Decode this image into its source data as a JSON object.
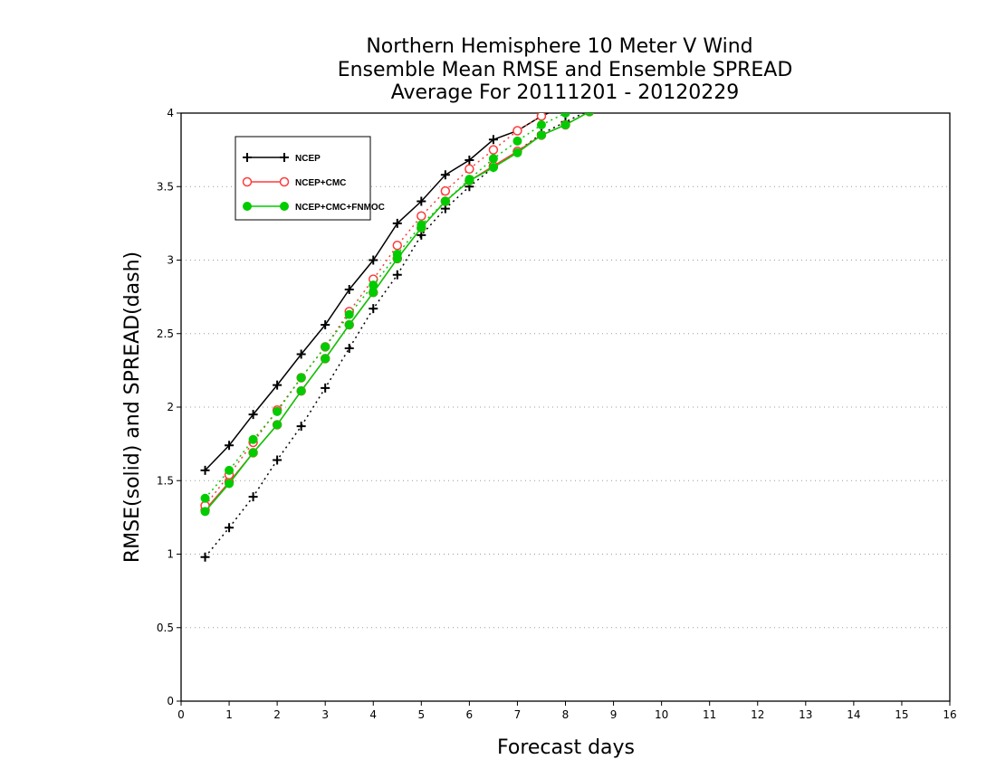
{
  "chart_data": {
    "type": "line",
    "title": [
      "Northern Hemisphere 10 Meter V Wind",
      "Ensemble Mean RMSE and Ensemble SPREAD",
      "Average For 20111201 - 20120229"
    ],
    "xlabel": "Forecast days",
    "ylabel": "RMSE(solid) and SPREAD(dash)",
    "xlim": [
      0,
      16
    ],
    "ylim": [
      0,
      4
    ],
    "xticks": [
      "0",
      "1",
      "2",
      "3",
      "4",
      "5",
      "6",
      "7",
      "8",
      "9",
      "10",
      "11",
      "12",
      "13",
      "14",
      "15",
      "16"
    ],
    "yticks": [
      "0",
      "0.5",
      "1",
      "1.5",
      "2",
      "2.5",
      "3",
      "3.5",
      "4"
    ],
    "grid": "horizontal dotted",
    "legend_position": "top-left",
    "x": [
      0.5,
      1.0,
      1.5,
      2.0,
      2.5,
      3.0,
      3.5,
      4.0,
      4.5,
      5.0,
      5.5,
      6.0,
      6.5,
      7.0,
      7.5,
      8.0,
      8.5,
      9.0
    ],
    "series": [
      {
        "name": "NCEP",
        "kind": "rmse",
        "style": "solid",
        "marker": "plus",
        "color": "#000000",
        "values": [
          1.57,
          1.74,
          1.95,
          2.15,
          2.36,
          2.56,
          2.8,
          3.0,
          3.25,
          3.4,
          3.58,
          3.68,
          3.82,
          3.88,
          3.98,
          4.05,
          4.12,
          4.18
        ]
      },
      {
        "name": "NCEP",
        "kind": "spread",
        "style": "dotted",
        "marker": "plus",
        "color": "#000000",
        "values": [
          0.98,
          1.18,
          1.39,
          1.64,
          1.87,
          2.13,
          2.4,
          2.67,
          2.9,
          3.17,
          3.35,
          3.5,
          3.63,
          3.74,
          3.86,
          3.94,
          4.02,
          4.08
        ]
      },
      {
        "name": "NCEP+CMC",
        "kind": "rmse",
        "style": "solid",
        "marker": "open-circle",
        "color": "#ff3b3b",
        "values": [
          1.3,
          1.49,
          1.69,
          1.88,
          2.11,
          2.33,
          2.56,
          2.78,
          3.01,
          3.22,
          3.4,
          3.54,
          3.64,
          3.74,
          3.85,
          3.92,
          4.01,
          4.08
        ]
      },
      {
        "name": "NCEP+CMC",
        "kind": "spread",
        "style": "dotted",
        "marker": "open-circle",
        "color": "#ff3b3b",
        "values": [
          1.33,
          1.54,
          1.76,
          1.98,
          2.2,
          2.41,
          2.65,
          2.87,
          3.1,
          3.3,
          3.47,
          3.62,
          3.75,
          3.88,
          3.98,
          4.05,
          4.11,
          4.16
        ]
      },
      {
        "name": "NCEP+CMC+FNMOC",
        "kind": "rmse",
        "style": "solid",
        "marker": "filled-circle",
        "color": "#00cc00",
        "values": [
          1.29,
          1.48,
          1.69,
          1.88,
          2.11,
          2.33,
          2.56,
          2.78,
          3.01,
          3.22,
          3.4,
          3.54,
          3.63,
          3.73,
          3.85,
          3.92,
          4.01,
          4.08
        ]
      },
      {
        "name": "NCEP+CMC+FNMOC",
        "kind": "spread",
        "style": "dotted",
        "marker": "filled-circle",
        "color": "#00cc00",
        "values": [
          1.38,
          1.57,
          1.78,
          1.97,
          2.2,
          2.41,
          2.63,
          2.83,
          3.04,
          3.24,
          3.4,
          3.55,
          3.69,
          3.81,
          3.92,
          4.0,
          4.07,
          4.13
        ]
      }
    ],
    "legend": [
      {
        "label": "NCEP",
        "marker": "plus",
        "color": "#000000"
      },
      {
        "label": "NCEP+CMC",
        "marker": "open-circle",
        "color": "#ff3b3b"
      },
      {
        "label": "NCEP+CMC+FNMOC",
        "marker": "filled-circle",
        "color": "#00cc00"
      }
    ]
  }
}
